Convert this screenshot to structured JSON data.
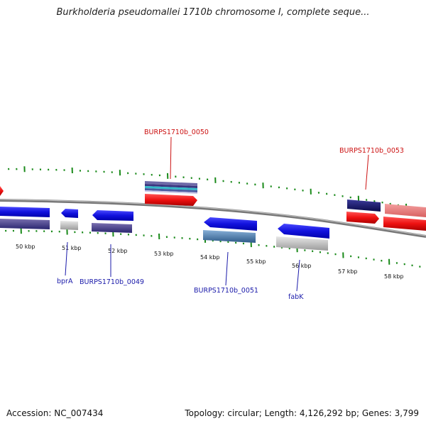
{
  "title": "Burkholderia pseudomallei 1710b chromosome I, complete seque...",
  "footer": {
    "accession": "Accession: NC_007434",
    "summary": "Topology: circular; Length: 4,126,292 bp; Genes: 3,799"
  },
  "colors": {
    "forward_gene": "#1a1aee",
    "reverse_gene": "#ee1111",
    "backbone": "#888888",
    "tick": "#1a8a1a",
    "forward_label": "#1a1aaa",
    "reverse_label": "#cc1111"
  },
  "scale_labels": [
    "50 kbp",
    "51 kbp",
    "52 kbp",
    "53 kbp",
    "54 kbp",
    "55 kbp",
    "56 kbp",
    "57 kbp",
    "58 kbp"
  ],
  "gene_labels": {
    "top": [
      "BURPS1710b_0050",
      "BURPS1710b_0053"
    ],
    "bottom": [
      "bprA",
      "BURPS1710b_0049",
      "BURPS1710b_0051",
      "fabK"
    ]
  }
}
